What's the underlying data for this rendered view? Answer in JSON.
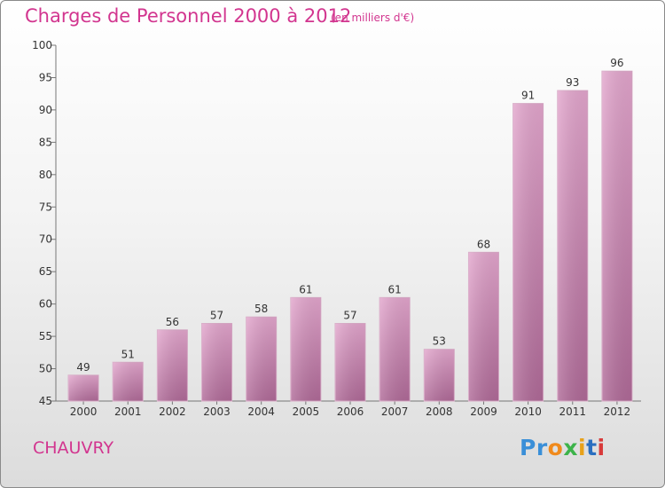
{
  "header": {
    "title": "Charges de Personnel 2000 à 2012",
    "subtitle": "(en milliers d'€)"
  },
  "footer": {
    "commune": "CHAUVRY",
    "logo_text": "Proxiti"
  },
  "colors": {
    "accent": "#d2358f",
    "bar_top": "#e3a6cd",
    "bar_bottom": "#b06a98"
  },
  "chart_data": {
    "type": "bar",
    "title": "Charges de Personnel 2000 à 2012",
    "subtitle": "(en milliers d'€)",
    "categories": [
      "2000",
      "2001",
      "2002",
      "2003",
      "2004",
      "2005",
      "2006",
      "2007",
      "2008",
      "2009",
      "2010",
      "2011",
      "2012"
    ],
    "values": [
      49,
      51,
      56,
      57,
      58,
      61,
      57,
      61,
      53,
      68,
      91,
      93,
      96
    ],
    "ylim": [
      45,
      100
    ],
    "yticks": [
      45,
      50,
      55,
      60,
      65,
      70,
      75,
      80,
      85,
      90,
      95,
      100
    ],
    "grid": false,
    "legend": "none"
  }
}
